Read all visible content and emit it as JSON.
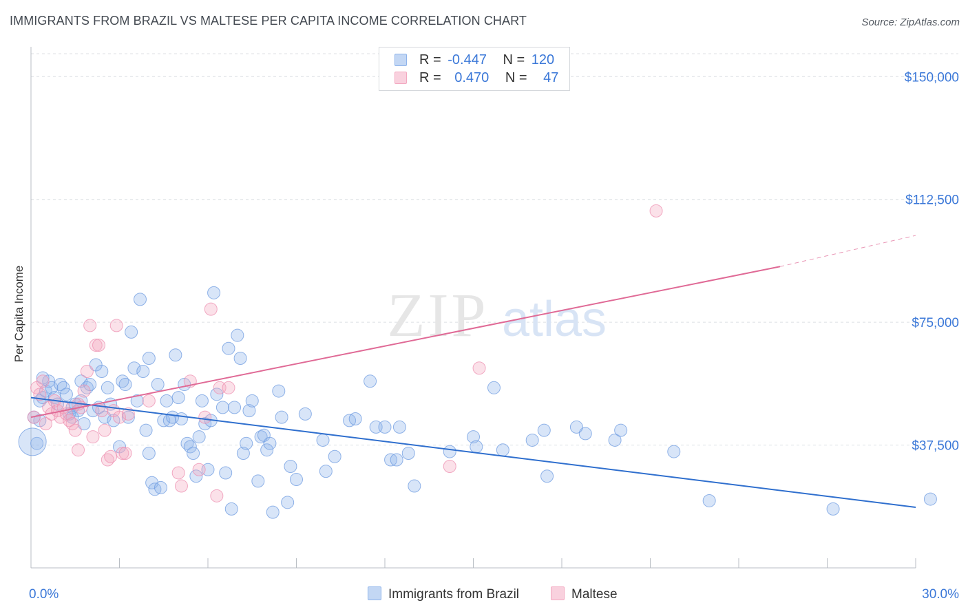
{
  "header": {
    "title": "IMMIGRANTS FROM BRAZIL VS MALTESE PER CAPITA INCOME CORRELATION CHART",
    "source": "Source: ZipAtlas.com"
  },
  "legend": {
    "rows": [
      {
        "r_label": "R =",
        "r_value": "-0.447",
        "n_label": "N =",
        "n_value": "120",
        "color": "#8fb4ea"
      },
      {
        "r_label": "R =",
        "r_value": "0.470",
        "n_label": "N =",
        "n_value": "47",
        "color": "#f3a9c1"
      }
    ]
  },
  "watermark": {
    "zip": "ZIP",
    "atlas": "atlas"
  },
  "chart_data": {
    "type": "scatter",
    "title": "IMMIGRANTS FROM BRAZIL VS MALTESE PER CAPITA INCOME CORRELATION CHART",
    "ylabel": "Per Capita Income",
    "xlim": [
      0,
      30
    ],
    "ylim": [
      0,
      157000
    ],
    "x_tick_labels": [
      "0.0%",
      "30.0%"
    ],
    "y_ticks": [
      37500,
      75000,
      112500,
      150000
    ],
    "y_tick_labels": [
      "$37,500",
      "$75,000",
      "$112,500",
      "$150,000"
    ],
    "grid": "horizontal dashed",
    "legend_position": "top-center and bottom",
    "series": [
      {
        "name": "Immigrants from Brazil",
        "color": "#8fb4ea",
        "line_color": "#2f6fce",
        "trend": {
          "x": [
            0,
            30
          ],
          "y": [
            52000,
            18500
          ]
        },
        "points": [
          [
            0.2,
            38000
          ],
          [
            0.3,
            51000
          ],
          [
            0.3,
            45000
          ],
          [
            0.4,
            52000
          ],
          [
            0.5,
            54000
          ],
          [
            0.6,
            57000
          ],
          [
            0.7,
            55000
          ],
          [
            0.8,
            52000
          ],
          [
            0.9,
            50000
          ],
          [
            1.0,
            56000
          ],
          [
            1.1,
            55000
          ],
          [
            1.2,
            53000
          ],
          [
            1.3,
            47000
          ],
          [
            1.4,
            49000
          ],
          [
            1.5,
            50000
          ],
          [
            1.6,
            48000
          ],
          [
            1.7,
            51000
          ],
          [
            1.7,
            57000
          ],
          [
            1.8,
            44000
          ],
          [
            1.9,
            55000
          ],
          [
            2.0,
            56000
          ],
          [
            2.1,
            48000
          ],
          [
            2.2,
            62000
          ],
          [
            2.3,
            49000
          ],
          [
            2.4,
            60000
          ],
          [
            2.5,
            46000
          ],
          [
            2.6,
            55000
          ],
          [
            2.7,
            50000
          ],
          [
            2.8,
            45000
          ],
          [
            3.0,
            37000
          ],
          [
            3.1,
            57000
          ],
          [
            3.2,
            56000
          ],
          [
            3.3,
            46000
          ],
          [
            3.4,
            72000
          ],
          [
            3.5,
            61000
          ],
          [
            3.6,
            51000
          ],
          [
            3.7,
            82000
          ],
          [
            3.8,
            60000
          ],
          [
            3.9,
            42000
          ],
          [
            4.0,
            64000
          ],
          [
            4.0,
            35000
          ],
          [
            4.1,
            26000
          ],
          [
            4.2,
            24000
          ],
          [
            4.3,
            56000
          ],
          [
            4.4,
            24500
          ],
          [
            4.5,
            45000
          ],
          [
            4.6,
            51000
          ],
          [
            4.7,
            45000
          ],
          [
            4.8,
            46000
          ],
          [
            4.9,
            65000
          ],
          [
            5.0,
            52000
          ],
          [
            5.1,
            45500
          ],
          [
            5.2,
            56000
          ],
          [
            5.3,
            38000
          ],
          [
            5.4,
            37000
          ],
          [
            5.5,
            35000
          ],
          [
            5.6,
            28000
          ],
          [
            5.7,
            40000
          ],
          [
            5.8,
            51000
          ],
          [
            5.9,
            44000
          ],
          [
            6.0,
            30000
          ],
          [
            6.1,
            45000
          ],
          [
            6.2,
            84000
          ],
          [
            6.3,
            53000
          ],
          [
            6.5,
            49000
          ],
          [
            6.6,
            29000
          ],
          [
            6.7,
            67000
          ],
          [
            6.8,
            18000
          ],
          [
            6.9,
            49000
          ],
          [
            7.0,
            71000
          ],
          [
            7.1,
            64000
          ],
          [
            7.2,
            35000
          ],
          [
            7.3,
            38000
          ],
          [
            7.4,
            48000
          ],
          [
            7.5,
            51000
          ],
          [
            7.7,
            26500
          ],
          [
            7.8,
            40000
          ],
          [
            7.9,
            40500
          ],
          [
            8.0,
            36000
          ],
          [
            8.1,
            38000
          ],
          [
            8.2,
            17000
          ],
          [
            8.4,
            54000
          ],
          [
            8.5,
            46000
          ],
          [
            8.7,
            20000
          ],
          [
            8.8,
            31000
          ],
          [
            9.0,
            27000
          ],
          [
            9.3,
            47000
          ],
          [
            9.9,
            39000
          ],
          [
            10.0,
            29500
          ],
          [
            10.3,
            34000
          ],
          [
            10.8,
            45000
          ],
          [
            11.0,
            45500
          ],
          [
            11.5,
            57000
          ],
          [
            11.7,
            43000
          ],
          [
            12.0,
            43000
          ],
          [
            12.2,
            33000
          ],
          [
            12.4,
            33000
          ],
          [
            12.5,
            43000
          ],
          [
            12.8,
            35000
          ],
          [
            13.0,
            25000
          ],
          [
            14.2,
            35500
          ],
          [
            15.0,
            40000
          ],
          [
            15.1,
            37000
          ],
          [
            15.7,
            55000
          ],
          [
            16.0,
            36000
          ],
          [
            17.0,
            39000
          ],
          [
            17.4,
            42000
          ],
          [
            17.5,
            28000
          ],
          [
            18.5,
            43000
          ],
          [
            18.8,
            41000
          ],
          [
            19.8,
            39000
          ],
          [
            20.0,
            42000
          ],
          [
            21.8,
            35500
          ],
          [
            23.0,
            20500
          ],
          [
            27.2,
            18000
          ],
          [
            30.5,
            21000
          ],
          [
            0.1,
            46000
          ],
          [
            0.4,
            58000
          ],
          [
            1.4,
            46000
          ]
        ]
      },
      {
        "name": "Maltese",
        "color": "#f3a9c1",
        "line_color": "#e06a96",
        "trend": {
          "x": [
            0,
            25.4
          ],
          "y": [
            46000,
            92000
          ]
        },
        "trend_extension": {
          "x": [
            25.4,
            30
          ],
          "y": [
            92000,
            101500
          ]
        },
        "points": [
          [
            0.1,
            46000
          ],
          [
            0.2,
            55000
          ],
          [
            0.3,
            53000
          ],
          [
            0.4,
            57000
          ],
          [
            0.5,
            44000
          ],
          [
            0.6,
            49000
          ],
          [
            0.7,
            47000
          ],
          [
            0.8,
            51000
          ],
          [
            0.9,
            48000
          ],
          [
            1.0,
            46000
          ],
          [
            1.1,
            49000
          ],
          [
            1.2,
            47000
          ],
          [
            1.3,
            45000
          ],
          [
            1.4,
            44000
          ],
          [
            1.5,
            42000
          ],
          [
            1.6,
            50000
          ],
          [
            1.6,
            36000
          ],
          [
            1.7,
            49000
          ],
          [
            1.8,
            54000
          ],
          [
            1.9,
            60000
          ],
          [
            2.0,
            74000
          ],
          [
            2.1,
            40000
          ],
          [
            2.2,
            68000
          ],
          [
            2.3,
            68000
          ],
          [
            2.4,
            48000
          ],
          [
            2.5,
            42000
          ],
          [
            2.6,
            33000
          ],
          [
            2.7,
            34000
          ],
          [
            2.8,
            48000
          ],
          [
            2.9,
            74000
          ],
          [
            3.0,
            46000
          ],
          [
            3.1,
            35000
          ],
          [
            3.2,
            35000
          ],
          [
            3.3,
            47000
          ],
          [
            4.0,
            51000
          ],
          [
            5.0,
            29000
          ],
          [
            5.1,
            25000
          ],
          [
            5.4,
            57000
          ],
          [
            5.7,
            30000
          ],
          [
            5.9,
            46000
          ],
          [
            6.1,
            79000
          ],
          [
            6.3,
            22000
          ],
          [
            6.4,
            55000
          ],
          [
            6.7,
            55000
          ],
          [
            14.2,
            31000
          ],
          [
            15.2,
            61000
          ],
          [
            21.2,
            109000
          ]
        ]
      }
    ]
  },
  "bottom_legend": {
    "items": [
      {
        "label": "Immigrants from Brazil",
        "color": "#8fb4ea"
      },
      {
        "label": "Maltese",
        "color": "#f3a9c1"
      }
    ]
  }
}
